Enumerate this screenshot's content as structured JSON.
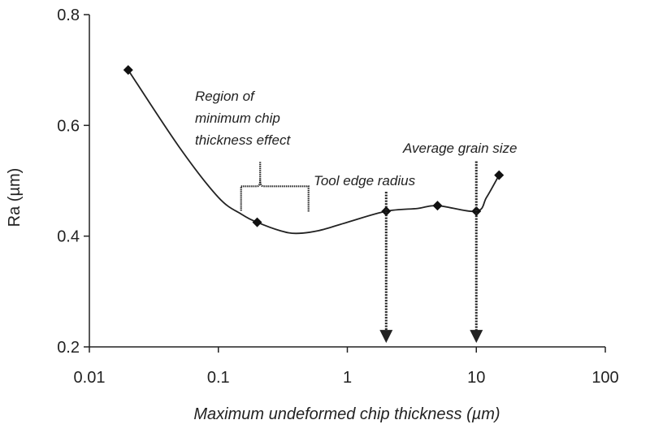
{
  "chart_data": {
    "type": "line",
    "title": "",
    "xlabel": "Maximum undeformed chip thickness (µm)",
    "ylabel": "Ra (µm)",
    "xscale": "log",
    "xlim": [
      0.01,
      100
    ],
    "ylim": [
      0.2,
      0.8
    ],
    "x_ticks": [
      0.01,
      0.1,
      1,
      10,
      100
    ],
    "x_tick_labels": [
      "0.01",
      "0.1",
      "1",
      "10",
      "100"
    ],
    "y_ticks": [
      0.2,
      0.4,
      0.6,
      0.8
    ],
    "y_tick_labels": [
      "0.2",
      "0.4",
      "0.6",
      "0.8"
    ],
    "grid": false,
    "series": [
      {
        "name": "Ra",
        "x": [
          0.02,
          0.2,
          2,
          5,
          10,
          15
        ],
        "y": [
          0.7,
          0.425,
          0.445,
          0.455,
          0.445,
          0.51
        ]
      }
    ],
    "curve": {
      "x": [
        0.02,
        0.05,
        0.1,
        0.15,
        0.2,
        0.3,
        0.4,
        0.6,
        1,
        2,
        3.5,
        5,
        10,
        12,
        15
      ],
      "y": [
        0.7,
        0.56,
        0.47,
        0.44,
        0.425,
        0.41,
        0.405,
        0.41,
        0.425,
        0.445,
        0.45,
        0.455,
        0.445,
        0.47,
        0.51
      ]
    },
    "annotations": {
      "region_label": [
        "Region of",
        "minimum chip",
        "thickness effect"
      ],
      "region_bracket": {
        "x_start": 0.15,
        "x_end": 0.5,
        "y": 0.49
      },
      "tool_edge_label": "Tool edge radius",
      "tool_edge_arrow": {
        "x": 2,
        "y_top": 0.48,
        "y_bottom": 0.21
      },
      "grain_label": "Average grain size",
      "grain_arrow": {
        "x": 10,
        "y_top": 0.535,
        "y_bottom": 0.21
      }
    }
  }
}
